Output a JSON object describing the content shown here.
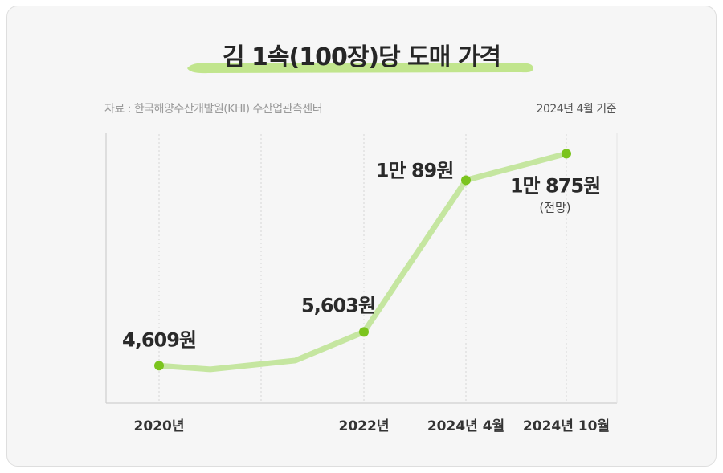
{
  "title": "김 1속(100장)당 도매 가격",
  "source": "자료 : 한국해양수산개발원(KHI) 수산업관측센터",
  "basis_note": "2024년 4월 기준",
  "colors": {
    "line": "#c5e6a0",
    "marker": "#7bc41d",
    "highlight": "#b7e27a"
  },
  "chart_data": {
    "type": "line",
    "title": "김 1속(100장)당 도매 가격",
    "xlabel": "",
    "ylabel": "",
    "unit": "원",
    "grid": true,
    "ylim": [
      3500,
      11500
    ],
    "x_ticks": [
      "2020년",
      "2022년",
      "2024년 4월",
      "2024년 10월"
    ],
    "points": [
      {
        "x": 2020.0,
        "y": 4609,
        "label": "4,609원",
        "marker": true
      },
      {
        "x": 2020.5,
        "y": 4500,
        "marker": false
      },
      {
        "x": 2021.33,
        "y": 4760,
        "marker": false
      },
      {
        "x": 2022.0,
        "y": 5603,
        "label": "5,603원",
        "marker": true
      },
      {
        "x": 2023.0,
        "y": 10089,
        "label": "1만 89원",
        "marker": true
      },
      {
        "x": 2024.0,
        "y": 10875,
        "label": "1만 875원",
        "sublabel": "(전망)",
        "marker": true
      }
    ]
  }
}
